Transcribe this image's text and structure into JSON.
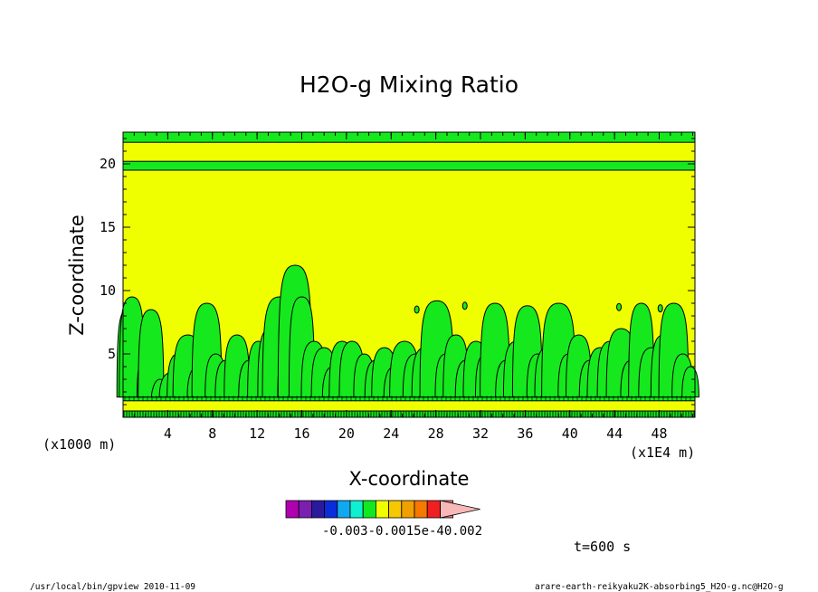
{
  "chart_data": {
    "type": "heatmap",
    "title": "H2O-g Mixing Ratio",
    "xlabel": "X-coordinate",
    "ylabel": "Z-coordinate",
    "x_unit_label": "(x1E4 m)",
    "y_unit_label": "(x1000 m)",
    "xlim": [
      0,
      51.2
    ],
    "ylim": [
      0,
      22.5
    ],
    "x_ticks": [
      4,
      8,
      12,
      16,
      20,
      24,
      28,
      32,
      36,
      40,
      44,
      48
    ],
    "y_ticks": [
      5,
      10,
      15,
      20
    ],
    "x_tick_labels": [
      "4",
      "8",
      "12",
      "16",
      "20",
      "24",
      "28",
      "32",
      "36",
      "40",
      "44",
      "48"
    ],
    "y_tick_labels": [
      "5",
      "10",
      "15",
      "20"
    ],
    "background_field_color": "#f0ff00",
    "moist_field_color": "#16e81e",
    "contour_color": "#000000",
    "green_bands_z": [
      [
        0.0,
        0.5
      ],
      [
        1.3,
        1.8
      ],
      [
        19.5,
        20.2
      ],
      [
        21.7,
        22.5
      ]
    ],
    "plumes": [
      {
        "x": 0.4,
        "top": 8.5,
        "w": 0.5
      },
      {
        "x": 0.8,
        "top": 9.5,
        "w": 0.6
      },
      {
        "x": 2.2,
        "top": 5.0,
        "w": 0.5
      },
      {
        "x": 2.5,
        "top": 8.5,
        "w": 0.6
      },
      {
        "x": 3.3,
        "top": 3.0,
        "w": 0.4
      },
      {
        "x": 4.2,
        "top": 3.5,
        "w": 0.5
      },
      {
        "x": 4.9,
        "top": 5.0,
        "w": 0.5
      },
      {
        "x": 5.8,
        "top": 6.5,
        "w": 0.7
      },
      {
        "x": 6.7,
        "top": 4.0,
        "w": 0.5
      },
      {
        "x": 7.5,
        "top": 9.0,
        "w": 0.7
      },
      {
        "x": 8.3,
        "top": 5.0,
        "w": 0.5
      },
      {
        "x": 9.2,
        "top": 4.5,
        "w": 0.5
      },
      {
        "x": 10.2,
        "top": 6.5,
        "w": 0.6
      },
      {
        "x": 11.3,
        "top": 4.5,
        "w": 0.5
      },
      {
        "x": 12.1,
        "top": 6.0,
        "w": 0.5
      },
      {
        "x": 13.2,
        "top": 7.0,
        "w": 0.6
      },
      {
        "x": 14.0,
        "top": 9.5,
        "w": 0.8
      },
      {
        "x": 14.6,
        "top": 5.0,
        "w": 0.4
      },
      {
        "x": 15.4,
        "top": 12.0,
        "w": 0.8
      },
      {
        "x": 16.0,
        "top": 9.5,
        "w": 0.6
      },
      {
        "x": 17.1,
        "top": 6.0,
        "w": 0.6
      },
      {
        "x": 18.0,
        "top": 5.5,
        "w": 0.6
      },
      {
        "x": 18.8,
        "top": 4.0,
        "w": 0.5
      },
      {
        "x": 19.6,
        "top": 6.0,
        "w": 0.6
      },
      {
        "x": 20.5,
        "top": 6.0,
        "w": 0.6
      },
      {
        "x": 21.6,
        "top": 5.0,
        "w": 0.5
      },
      {
        "x": 22.6,
        "top": 4.5,
        "w": 0.5
      },
      {
        "x": 23.4,
        "top": 5.5,
        "w": 0.6
      },
      {
        "x": 24.3,
        "top": 4.0,
        "w": 0.5
      },
      {
        "x": 25.2,
        "top": 6.0,
        "w": 0.7
      },
      {
        "x": 26.2,
        "top": 5.0,
        "w": 0.6
      },
      {
        "x": 27.0,
        "top": 5.5,
        "w": 0.6
      },
      {
        "x": 28.1,
        "top": 9.2,
        "w": 0.8
      },
      {
        "x": 28.9,
        "top": 5.0,
        "w": 0.5
      },
      {
        "x": 29.8,
        "top": 6.5,
        "w": 0.6
      },
      {
        "x": 30.7,
        "top": 4.5,
        "w": 0.5
      },
      {
        "x": 31.6,
        "top": 6.0,
        "w": 0.6
      },
      {
        "x": 32.5,
        "top": 5.0,
        "w": 0.5
      },
      {
        "x": 33.3,
        "top": 9.0,
        "w": 0.7
      },
      {
        "x": 34.3,
        "top": 4.5,
        "w": 0.5
      },
      {
        "x": 35.2,
        "top": 6.0,
        "w": 0.6
      },
      {
        "x": 36.2,
        "top": 8.8,
        "w": 0.7
      },
      {
        "x": 37.1,
        "top": 5.0,
        "w": 0.5
      },
      {
        "x": 38.0,
        "top": 5.5,
        "w": 0.6
      },
      {
        "x": 39.0,
        "top": 9.0,
        "w": 0.8
      },
      {
        "x": 39.9,
        "top": 5.0,
        "w": 0.5
      },
      {
        "x": 40.8,
        "top": 6.5,
        "w": 0.6
      },
      {
        "x": 41.8,
        "top": 4.5,
        "w": 0.5
      },
      {
        "x": 42.7,
        "top": 5.5,
        "w": 0.6
      },
      {
        "x": 43.6,
        "top": 6.0,
        "w": 0.6
      },
      {
        "x": 44.6,
        "top": 7.0,
        "w": 0.7
      },
      {
        "x": 45.5,
        "top": 4.5,
        "w": 0.5
      },
      {
        "x": 46.4,
        "top": 9.0,
        "w": 0.6
      },
      {
        "x": 47.3,
        "top": 5.5,
        "w": 0.6
      },
      {
        "x": 48.4,
        "top": 6.5,
        "w": 0.6
      },
      {
        "x": 49.3,
        "top": 9.0,
        "w": 0.7
      },
      {
        "x": 50.1,
        "top": 5.0,
        "w": 0.5
      },
      {
        "x": 50.8,
        "top": 4.0,
        "w": 0.4
      }
    ],
    "blobs": [
      {
        "x": 26.3,
        "z": 8.5,
        "r": 0.25
      },
      {
        "x": 30.6,
        "z": 8.8,
        "r": 0.2
      },
      {
        "x": 44.4,
        "z": 8.7,
        "r": 0.2
      },
      {
        "x": 48.1,
        "z": 8.6,
        "r": 0.2
      }
    ],
    "colorbar": {
      "colors": [
        "#b000b0",
        "#7a1fb0",
        "#2b1a9e",
        "#0b2cdb",
        "#10a8f0",
        "#0ff0d0",
        "#10e820",
        "#f0ff00",
        "#f5c800",
        "#f0a000",
        "#f57800",
        "#f02020",
        "#f07878",
        "#f8b8b8"
      ],
      "tick_text": "-0.003-0.0015e-40.002"
    },
    "time_label": "t=600 s",
    "footer_left": "/usr/local/bin/gpview  2010-11-09",
    "footer_right": "arare-earth-reikyaku2K-absorbing5_H2O-g.nc@H2O-g"
  }
}
